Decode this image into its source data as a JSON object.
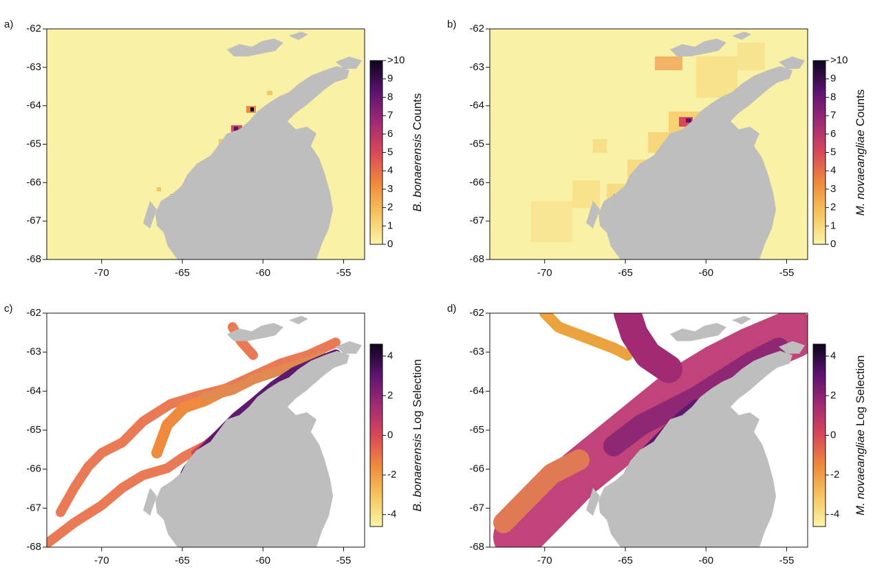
{
  "chart_data": [
    {
      "type": "map",
      "panel_label": "a)",
      "background": "#f9f1a5",
      "xlim": [
        -73.4,
        -53.7
      ],
      "ylim": [
        -68,
        -62
      ],
      "xticks": [
        -70,
        -65,
        -60,
        -55
      ],
      "yticks": [
        -62,
        -63,
        -64,
        -65,
        -66,
        -67,
        -68
      ],
      "colorbar": {
        "species": "B. bonaerensis",
        "label": "Counts",
        "lim": [
          0,
          10
        ],
        "ticks": [
          0,
          1,
          2,
          3,
          4,
          5,
          6,
          7,
          8,
          9,
          {
            "value": 10,
            "label": ">10"
          }
        ],
        "colors": [
          "#fcf5a8",
          "#f6c55f",
          "#ef8a3c",
          "#d9485a",
          "#a02a74",
          "#5b1370",
          "#0d0419"
        ]
      }
    },
    {
      "type": "map",
      "panel_label": "b)",
      "background": "#f9f1a5",
      "xlim": [
        -73.4,
        -53.7
      ],
      "ylim": [
        -68,
        -62
      ],
      "xticks": [
        -70,
        -65,
        -60,
        -55
      ],
      "yticks": [
        -62,
        -63,
        -64,
        -65,
        -66,
        -67,
        -68
      ],
      "colorbar": {
        "species": "M. novaeangliae",
        "label": "Counts",
        "lim": [
          0,
          10
        ],
        "ticks": [
          0,
          1,
          2,
          3,
          4,
          5,
          6,
          7,
          8,
          9,
          {
            "value": 10,
            "label": ">10"
          }
        ],
        "colors": [
          "#fcf5a8",
          "#f6c55f",
          "#ef8a3c",
          "#d9485a",
          "#a02a74",
          "#5b1370",
          "#0d0419"
        ]
      }
    },
    {
      "type": "map",
      "panel_label": "c)",
      "background": "#ffffff",
      "xlim": [
        -73.4,
        -53.7
      ],
      "ylim": [
        -68,
        -62
      ],
      "xticks": [
        -70,
        -65,
        -60,
        -55
      ],
      "yticks": [
        -62,
        -63,
        -64,
        -65,
        -66,
        -67,
        -68
      ],
      "colorbar": {
        "species": "B. bonaerensis",
        "label": "Log Selection",
        "lim": [
          -4.6,
          4.6
        ],
        "ticks": [
          -4,
          -2,
          0,
          2,
          4
        ],
        "colors": [
          "#fcf5a8",
          "#f6c55f",
          "#ef8a3c",
          "#d9485a",
          "#a02a74",
          "#5b1370",
          "#0d0419"
        ]
      }
    },
    {
      "type": "map",
      "panel_label": "d)",
      "background": "#ffffff",
      "xlim": [
        -73.4,
        -53.7
      ],
      "ylim": [
        -68,
        -62
      ],
      "xticks": [
        -70,
        -65,
        -60,
        -55
      ],
      "yticks": [
        -62,
        -63,
        -64,
        -65,
        -66,
        -67,
        -68
      ],
      "colorbar": {
        "species": "M. novaeangliae",
        "label": "Log Selection",
        "lim": [
          -4.6,
          4.6
        ],
        "ticks": [
          -4,
          -2,
          0,
          2,
          4
        ],
        "colors": [
          "#fcf5a8",
          "#f6c55f",
          "#ef8a3c",
          "#d9485a",
          "#a02a74",
          "#5b1370",
          "#0d0419"
        ]
      }
    }
  ]
}
